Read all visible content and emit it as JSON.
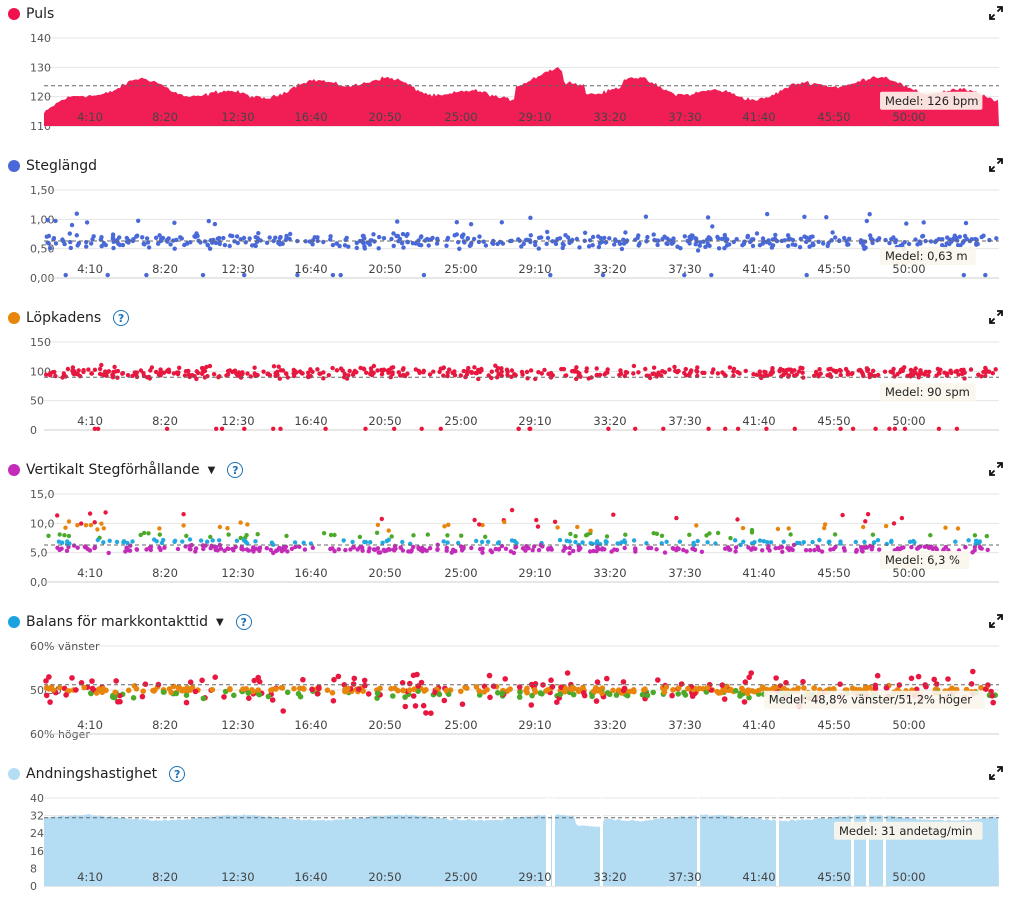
{
  "icons": {
    "expand": "expand-icon",
    "help": "help-icon",
    "caret": "caret-down-icon",
    "legend": "legend-dot-icon"
  },
  "colors": {
    "pulse": "#f0124d",
    "stride": "#4a69d8",
    "cadence": "#e8173f",
    "vertical": "#c42bb8",
    "balance": "#1aa3e0",
    "breathing": "#b4dcf2",
    "orange": "#e8850c",
    "green": "#4caa2a",
    "cyan": "#22a8e0",
    "red": "#e8173f",
    "magenta": "#c42bb8"
  },
  "x_labels": [
    "4:10",
    "8:20",
    "12:30",
    "16:40",
    "20:50",
    "25:00",
    "29:10",
    "33:20",
    "37:30",
    "41:40",
    "45:50",
    "50:00"
  ],
  "panels": [
    {
      "id": "pulse",
      "title": "Puls",
      "help": false,
      "caret": false,
      "color": "#f0124d",
      "chart_data": {
        "type": "area",
        "xlabel": "",
        "ylabel": "",
        "ylim": [
          110,
          145
        ],
        "yticks": [
          "110",
          "120",
          "130",
          "140"
        ],
        "avg_value": 126,
        "avg_label": "Medel: 126 bpm"
      }
    },
    {
      "id": "stride",
      "title": "Steglängd",
      "help": false,
      "caret": false,
      "color": "#4a69d8",
      "chart_data": {
        "type": "scatter",
        "xlabel": "",
        "ylabel": "",
        "ylim": [
          0,
          1.5
        ],
        "yticks": [
          "0,00",
          "0,50",
          "1,00",
          "1,50"
        ],
        "avg_value": 0.63,
        "avg_label": "Medel: 0,63 m"
      }
    },
    {
      "id": "cadence",
      "title": "Löpkadens",
      "help": true,
      "caret": false,
      "color": "#e8850c",
      "chart_data": {
        "type": "scatter",
        "xlabel": "",
        "ylabel": "",
        "ylim": [
          0,
          150
        ],
        "yticks": [
          "0",
          "50",
          "100",
          "150"
        ],
        "avg_value": 90,
        "avg_label": "Medel: 90 spm"
      }
    },
    {
      "id": "vertical",
      "title": "Vertikalt Stegförhållande",
      "help": true,
      "caret": true,
      "color": "#c42bb8",
      "chart_data": {
        "type": "scatter",
        "xlabel": "",
        "ylabel": "",
        "ylim": [
          0,
          15
        ],
        "yticks": [
          "0,0",
          "5,0",
          "10,0",
          "15,0"
        ],
        "avg_value": 6.3,
        "avg_label": "Medel: 6,3 %"
      }
    },
    {
      "id": "balance",
      "title": "Balans för markkontakttid",
      "help": true,
      "caret": true,
      "color": "#1aa3e0",
      "chart_data": {
        "type": "scatter",
        "xlabel": "",
        "ylabel": "",
        "ylim": [
          40,
          60
        ],
        "yticks": [
          "60% höger",
          "50/50",
          "60% vänster"
        ],
        "avg_value": 48.8,
        "avg_label": "Medel: 48,8% vänster/51,2% höger"
      }
    },
    {
      "id": "breathing",
      "title": "Andningshastighet",
      "help": true,
      "caret": false,
      "color": "#b4dcf2",
      "chart_data": {
        "type": "area",
        "xlabel": "",
        "ylabel": "",
        "ylim": [
          0,
          40
        ],
        "yticks": [
          "0",
          "8",
          "16",
          "24",
          "32",
          "40"
        ],
        "avg_value": 31,
        "avg_label": "Medel: 31 andetag/min"
      }
    }
  ]
}
